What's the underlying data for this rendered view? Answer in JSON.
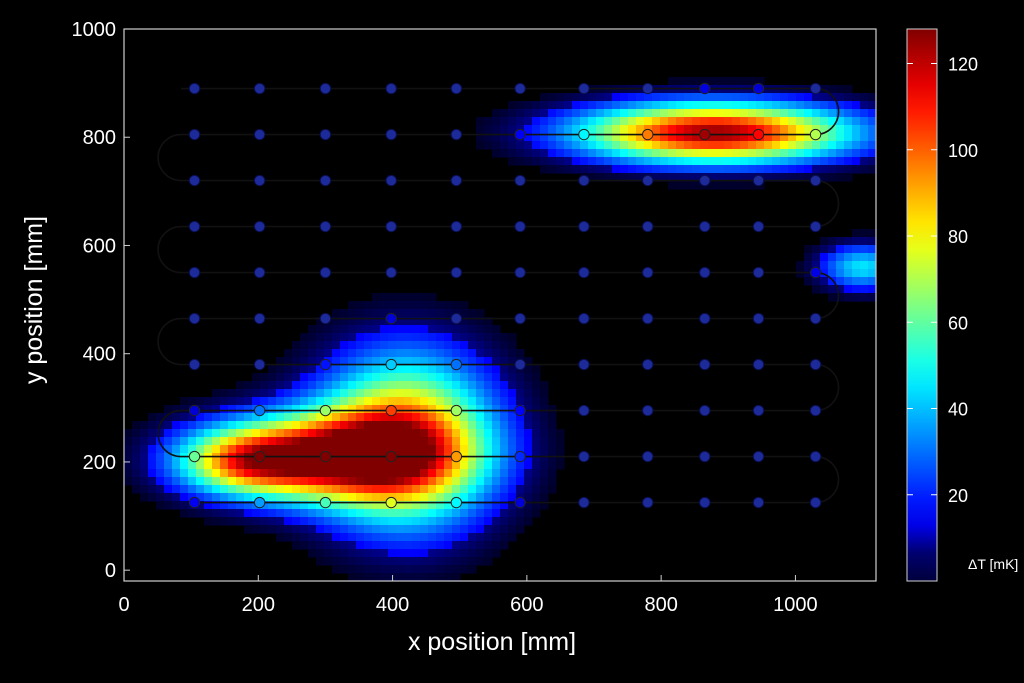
{
  "chart_data": {
    "type": "heatmap",
    "xlabel": "x position [mm]",
    "ylabel": "y position [mm]",
    "xlim": [
      0,
      1120
    ],
    "ylim": [
      -20,
      1000
    ],
    "xticks": [
      "0",
      "200",
      "400",
      "600",
      "800",
      "1000"
    ],
    "yticks": [
      "0",
      "200",
      "400",
      "600",
      "800",
      "1000"
    ],
    "colorbar": {
      "label": "ΔT [mK]",
      "range": [
        0,
        128
      ],
      "ticks": [
        "20",
        "40",
        "60",
        "80",
        "100",
        "120"
      ],
      "colormap": "jet"
    },
    "hotspots": [
      {
        "x": 300,
        "y": 210,
        "sx": 120,
        "sy": 55,
        "value": 105
      },
      {
        "x": 420,
        "y": 240,
        "sx": 90,
        "sy": 110,
        "value": 95
      },
      {
        "x": 180,
        "y": 200,
        "sx": 70,
        "sy": 40,
        "value": 60
      },
      {
        "x": 880,
        "y": 808,
        "sx": 140,
        "sy": 38,
        "value": 125
      },
      {
        "x": 1100,
        "y": 560,
        "sx": 45,
        "sy": 30,
        "value": 45
      }
    ],
    "meander_rows_y": [
      125,
      210,
      295,
      380,
      465,
      550,
      635,
      720,
      805,
      890
    ],
    "sensor_x": [
      105,
      202,
      300,
      398,
      495,
      590,
      685,
      780,
      865,
      945,
      1030
    ],
    "sensor_row_x": {
      "125": [
        105,
        202,
        300,
        398,
        495,
        590,
        685,
        780,
        865,
        945,
        1030
      ],
      "210": [
        105,
        202,
        300,
        398,
        495,
        590,
        685,
        780,
        865,
        945,
        1030
      ],
      "295": [
        105,
        202,
        300,
        398,
        495,
        590,
        685,
        780,
        865,
        945,
        1030
      ],
      "380": [
        105,
        202,
        300,
        398,
        495,
        590,
        685,
        780,
        865,
        945,
        1030
      ],
      "465": [
        105,
        202,
        300,
        398,
        495,
        590,
        685,
        780,
        865,
        945,
        1030
      ],
      "550": [
        105,
        202,
        300,
        398,
        495,
        590,
        685,
        780,
        865,
        945,
        1030
      ],
      "635": [
        105,
        202,
        300,
        398,
        495,
        590,
        685,
        780,
        865,
        945,
        1030
      ],
      "720": [
        105,
        202,
        300,
        398,
        495,
        590,
        685,
        780,
        865,
        945,
        1030
      ],
      "805": [
        105,
        202,
        300,
        398,
        495,
        590,
        685,
        780,
        865,
        945,
        1030
      ],
      "890": [
        105,
        202,
        300,
        398,
        495,
        590,
        685,
        780,
        865,
        945,
        1030
      ]
    }
  }
}
